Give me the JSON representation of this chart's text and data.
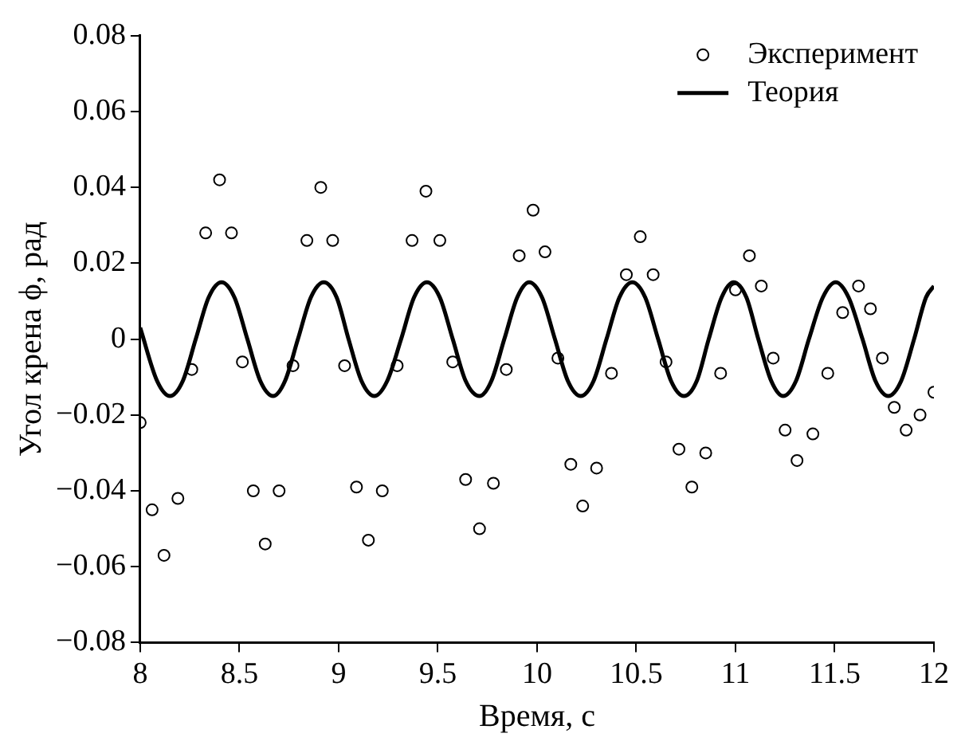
{
  "chart_data": {
    "type": "line",
    "xlabel": "Время, с",
    "ylabel": "Угол крена ϕ, рад",
    "xlim": [
      8,
      12
    ],
    "xticks": [
      8,
      8.5,
      9,
      9.5,
      10,
      10.5,
      11,
      11.5,
      12
    ],
    "ylim": [
      -0.08,
      0.08
    ],
    "yticks": [
      {
        "value": -0.08,
        "label": "−0.08"
      },
      {
        "value": -0.06,
        "label": "−0.06"
      },
      {
        "value": -0.04,
        "label": "−0.04"
      },
      {
        "value": -0.02,
        "label": "−0.02"
      },
      0,
      0.02,
      0.04,
      0.06,
      0.08
    ],
    "grid": false,
    "legend": "top right",
    "series": [
      {
        "name": "Эксперимент",
        "type": "scatter",
        "marker": "circle",
        "color": "#000000",
        "x": [
          8.0,
          8.06,
          8.12,
          8.19,
          8.26,
          8.33,
          8.4,
          8.46,
          8.515,
          8.57,
          8.63,
          8.7,
          8.77,
          8.84,
          8.91,
          8.97,
          9.03,
          9.09,
          9.15,
          9.22,
          9.295,
          9.37,
          9.44,
          9.51,
          9.575,
          9.64,
          9.71,
          9.78,
          9.845,
          9.91,
          9.98,
          10.04,
          10.105,
          10.17,
          10.23,
          10.3,
          10.375,
          10.45,
          10.52,
          10.585,
          10.65,
          10.715,
          10.78,
          10.85,
          10.925,
          11.0,
          11.07,
          11.13,
          11.19,
          11.25,
          11.31,
          11.39,
          11.465,
          11.54,
          11.62,
          11.68,
          11.74,
          11.8,
          11.86,
          11.93,
          12.0
        ],
        "values": [
          -0.022,
          -0.045,
          -0.057,
          -0.042,
          -0.008,
          0.028,
          0.042,
          0.028,
          -0.006,
          -0.04,
          -0.054,
          -0.04,
          -0.007,
          0.026,
          0.04,
          0.026,
          -0.007,
          -0.039,
          -0.053,
          -0.04,
          -0.007,
          0.026,
          0.039,
          0.026,
          -0.006,
          -0.037,
          -0.05,
          -0.038,
          -0.008,
          0.022,
          0.034,
          0.023,
          -0.005,
          -0.033,
          -0.044,
          -0.034,
          -0.009,
          0.017,
          0.027,
          0.017,
          -0.006,
          -0.029,
          -0.039,
          -0.03,
          -0.009,
          0.013,
          0.022,
          0.014,
          -0.005,
          -0.024,
          -0.032,
          -0.025,
          -0.009,
          0.007,
          0.014,
          0.008,
          -0.005,
          -0.018,
          -0.024,
          -0.02,
          -0.014
        ]
      },
      {
        "name": "Теория",
        "marker": "none",
        "line_style": "solid",
        "color": "#000000",
        "x": [
          8.0,
          8.085,
          8.15,
          8.215,
          8.28,
          8.345,
          8.41,
          8.475,
          8.54,
          8.605,
          8.67,
          8.73,
          8.795,
          8.86,
          8.925,
          8.99,
          9.05,
          9.115,
          9.18,
          9.245,
          9.315,
          9.38,
          9.445,
          9.51,
          9.575,
          9.64,
          9.71,
          9.77,
          9.835,
          9.9,
          9.96,
          10.025,
          10.09,
          10.155,
          10.22,
          10.285,
          10.35,
          10.415,
          10.48,
          10.545,
          10.61,
          10.675,
          10.74,
          10.805,
          10.865,
          10.93,
          10.99,
          11.055,
          11.115,
          11.18,
          11.24,
          11.305,
          11.37,
          11.44,
          11.505,
          11.57,
          11.64,
          11.705,
          11.77,
          11.835,
          11.9,
          11.96,
          12.0
        ],
        "values": [
          0.003,
          -0.011,
          -0.015,
          -0.011,
          0,
          0.011,
          0.015,
          0.011,
          0,
          -0.011,
          -0.015,
          -0.011,
          0,
          0.011,
          0.015,
          0.011,
          0,
          -0.011,
          -0.015,
          -0.011,
          0,
          0.011,
          0.015,
          0.011,
          0,
          -0.011,
          -0.015,
          -0.011,
          0,
          0.011,
          0.015,
          0.011,
          0,
          -0.011,
          -0.015,
          -0.011,
          0,
          0.011,
          0.015,
          0.011,
          0,
          -0.011,
          -0.015,
          -0.011,
          0,
          0.011,
          0.015,
          0.011,
          0,
          -0.011,
          -0.015,
          -0.011,
          0,
          0.011,
          0.015,
          0.011,
          0,
          -0.011,
          -0.015,
          -0.011,
          0,
          0.011,
          0.014
        ]
      }
    ]
  }
}
